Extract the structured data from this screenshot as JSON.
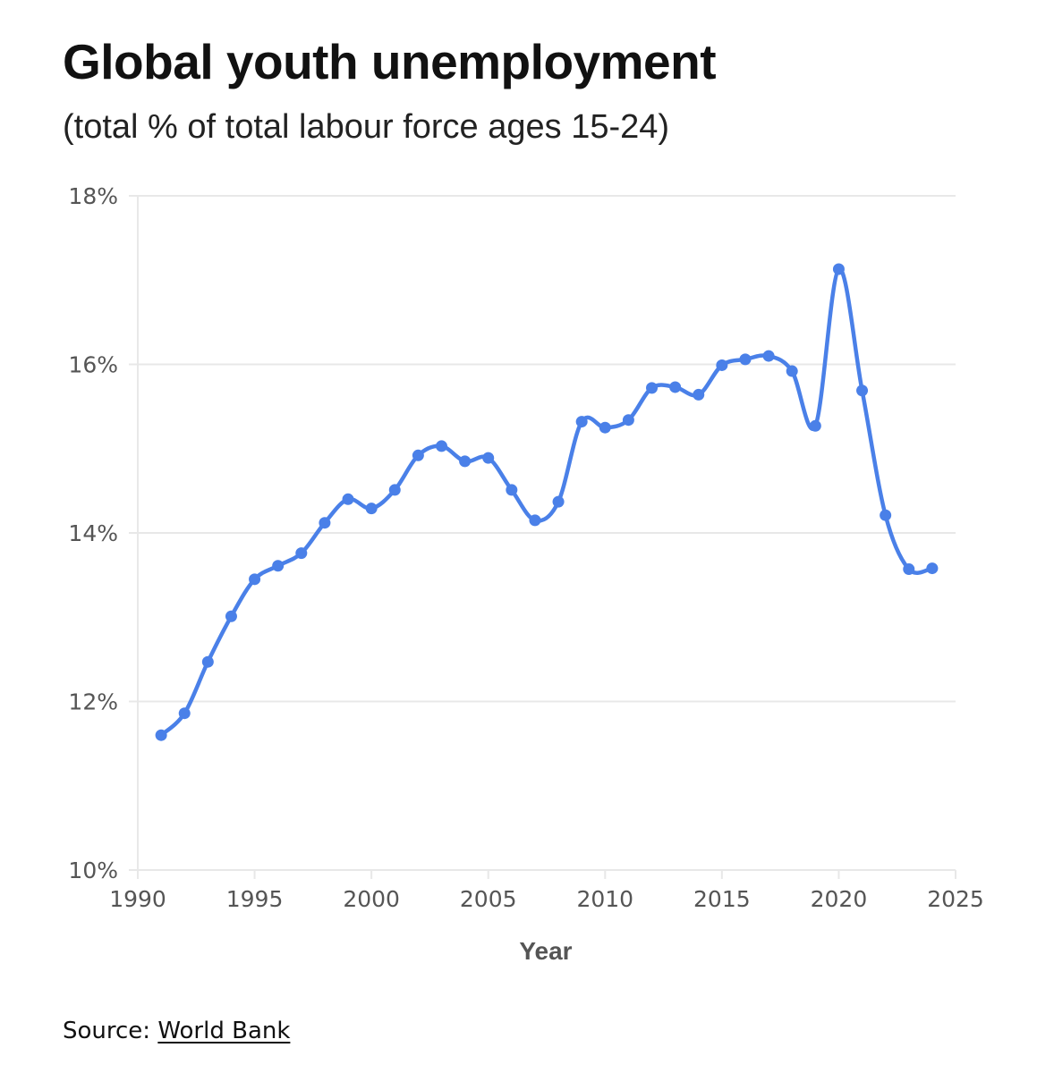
{
  "title": "Global youth unemployment",
  "subtitle": "(total % of total labour force ages 15-24)",
  "source": {
    "label": "Source:",
    "link_text": "World Bank"
  },
  "colors": {
    "series": "#4A80E8",
    "grid": "#E8E8E8",
    "axis_text": "#555555"
  },
  "chart_data": {
    "type": "line",
    "xlabel": "Year",
    "ylabel": "",
    "xlim": [
      1990,
      2025
    ],
    "ylim": [
      10,
      18
    ],
    "x_ticks": [
      1990,
      1995,
      2000,
      2005,
      2010,
      2015,
      2020,
      2025
    ],
    "x_tick_labels": [
      "1990",
      "1995",
      "2000",
      "2005",
      "2010",
      "2015",
      "2020",
      "2025"
    ],
    "y_ticks": [
      10,
      12,
      14,
      16,
      18
    ],
    "y_tick_labels": [
      "10%",
      "12%",
      "14%",
      "16%",
      "18%"
    ],
    "grid": "horizontal",
    "markers": true,
    "smooth": true,
    "series": [
      {
        "x": [
          1991,
          1992,
          1993,
          1994,
          1995,
          1996,
          1997,
          1998,
          1999,
          2000,
          2001,
          2002,
          2003,
          2004,
          2005,
          2006,
          2007,
          2008,
          2009,
          2010,
          2011,
          2012,
          2013,
          2014,
          2015,
          2016,
          2017,
          2018,
          2019,
          2020,
          2021,
          2022,
          2023,
          2024
        ],
        "values": [
          11.6,
          11.86,
          12.47,
          13.01,
          13.45,
          13.61,
          13.76,
          14.12,
          14.4,
          14.29,
          14.51,
          14.92,
          15.03,
          14.85,
          14.89,
          14.51,
          14.15,
          14.37,
          15.32,
          15.25,
          15.34,
          15.72,
          15.73,
          15.64,
          15.99,
          16.06,
          16.1,
          15.92,
          15.27,
          17.13,
          15.69,
          14.21,
          13.57,
          13.58
        ]
      }
    ]
  }
}
